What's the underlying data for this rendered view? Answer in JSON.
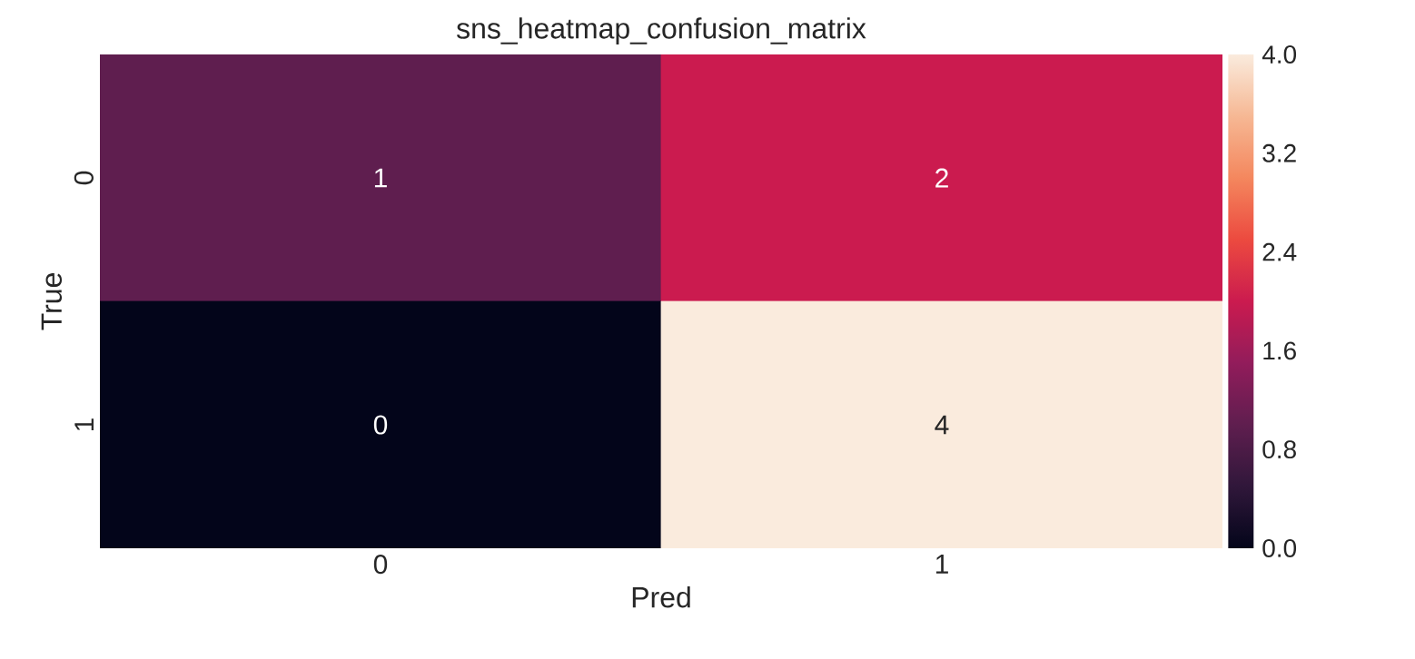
{
  "chart_data": {
    "type": "heatmap",
    "title": "sns_heatmap_confusion_matrix",
    "xlabel": "Pred",
    "ylabel": "True",
    "categories": [
      "0",
      "1"
    ],
    "y_categories": [
      "0",
      "1"
    ],
    "cells": [
      [
        1,
        2
      ],
      [
        0,
        4
      ]
    ],
    "clim": [
      0,
      4
    ],
    "cticks": [
      {
        "value": 0,
        "label": "0.0"
      },
      {
        "value": 0.8,
        "label": "0.8"
      },
      {
        "value": 1.6,
        "label": "1.6"
      },
      {
        "value": 2.4,
        "label": "2.4"
      },
      {
        "value": 3.2,
        "label": "3.2"
      },
      {
        "value": 4,
        "label": "4.0"
      }
    ],
    "data_labels": true
  }
}
